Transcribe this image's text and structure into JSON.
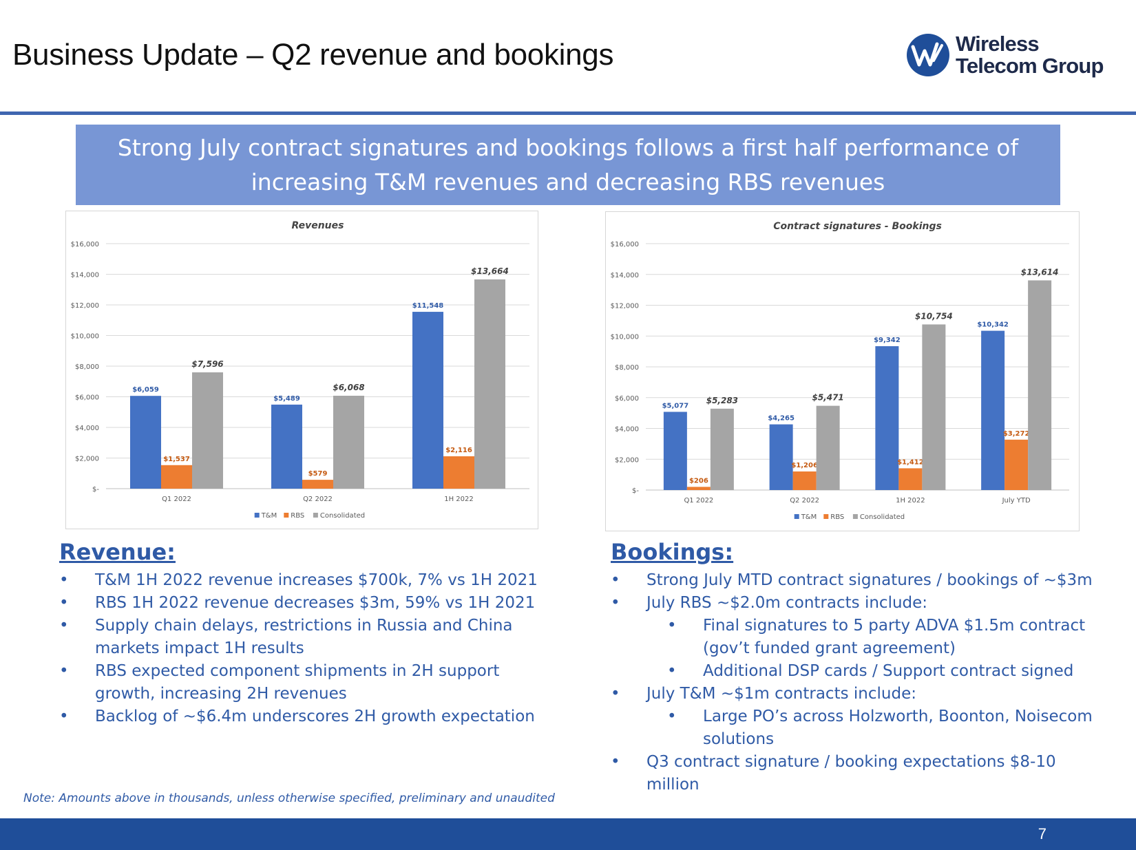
{
  "header": {
    "title": "Business Update – Q2 revenue and bookings",
    "logo_line1": "Wireless",
    "logo_line2": "Telecom Group",
    "logo_mark": "W-logo-icon"
  },
  "banner": {
    "line1": "Strong July contract signatures and bookings follows a first half performance of",
    "line2": "increasing T&M revenues and decreasing RBS revenues"
  },
  "colors": {
    "tm": "#4472c4",
    "rbs": "#ed7d31",
    "consolidated": "#a5a5a5",
    "accent": "#2f5aa6",
    "footer": "#1f4e99"
  },
  "chart_data": [
    {
      "type": "bar",
      "title": "Revenues",
      "categories": [
        "Q1 2022",
        "Q2 2022",
        "1H 2022"
      ],
      "series": [
        {
          "name": "T&M",
          "values": [
            6059,
            5489,
            11548
          ],
          "labels": [
            "$6,059",
            "$5,489",
            "$11,548"
          ]
        },
        {
          "name": "RBS",
          "values": [
            1537,
            579,
            2116
          ],
          "labels": [
            "$1,537",
            "$579",
            "$2,116"
          ]
        },
        {
          "name": "Consolidated",
          "values": [
            7596,
            6068,
            13664
          ],
          "labels": [
            "$7,596",
            "$6,068",
            "$13,664"
          ]
        }
      ],
      "yticks": [
        "$-",
        "$2,000",
        "$4,000",
        "$6,000",
        "$8,000",
        "$10,000",
        "$12,000",
        "$14,000",
        "$16,000"
      ],
      "ylim": [
        0,
        16000
      ],
      "grid": true,
      "legend": "bottom"
    },
    {
      "type": "bar",
      "title": "Contract signatures - Bookings",
      "categories": [
        "Q1 2022",
        "Q2 2022",
        "1H 2022",
        "July YTD"
      ],
      "series": [
        {
          "name": "T&M",
          "values": [
            5077,
            4265,
            9342,
            10342
          ],
          "labels": [
            "$5,077",
            "$4,265",
            "$9,342",
            "$10,342"
          ]
        },
        {
          "name": "RBS",
          "values": [
            206,
            1206,
            1412,
            3272
          ],
          "labels": [
            "$206",
            "$1,206",
            "$1,412",
            "$3,272"
          ]
        },
        {
          "name": "Consolidated",
          "values": [
            5283,
            5471,
            10754,
            13614
          ],
          "labels": [
            "$5,283",
            "$5,471",
            "$10,754",
            "$13,614"
          ]
        }
      ],
      "yticks": [
        "$-",
        "$2,000",
        "$4,000",
        "$6,000",
        "$8,000",
        "$10,000",
        "$12,000",
        "$14,000",
        "$16,000"
      ],
      "ylim": [
        0,
        16000
      ],
      "grid": true,
      "legend": "bottom"
    }
  ],
  "revenue": {
    "heading": "Revenue:",
    "items": [
      {
        "level": 1,
        "text": "T&M 1H 2022 revenue increases $700k, 7% vs 1H 2021"
      },
      {
        "level": 1,
        "text": "RBS 1H 2022 revenue decreases $3m, 59% vs 1H 2021"
      },
      {
        "level": 1,
        "text": "Supply chain delays, restrictions in Russia and China markets impact 1H results"
      },
      {
        "level": 1,
        "text": "RBS expected component shipments in 2H support growth, increasing 2H revenues"
      },
      {
        "level": 1,
        "text": "Backlog of ~$6.4m underscores 2H growth expectation"
      }
    ]
  },
  "bookings": {
    "heading": "Bookings:",
    "items": [
      {
        "level": 1,
        "text": "Strong July MTD contract signatures / bookings of ~$3m"
      },
      {
        "level": 1,
        "text": "July RBS ~$2.0m contracts include:"
      },
      {
        "level": 2,
        "text": "Final signatures to 5 party ADVA $1.5m contract (gov’t funded grant agreement)"
      },
      {
        "level": 2,
        "text": "Additional DSP cards / Support contract signed"
      },
      {
        "level": 1,
        "text": "July T&M ~$1m contracts include:"
      },
      {
        "level": 2,
        "text": "Large PO’s across Holzworth, Boonton, Noisecom solutions"
      },
      {
        "level": 1,
        "text": "Q3 contract signature / booking expectations $8-10 million"
      }
    ]
  },
  "note": "Note: Amounts above in thousands, unless otherwise specified, preliminary and unaudited",
  "footer": {
    "page_number": "7"
  }
}
